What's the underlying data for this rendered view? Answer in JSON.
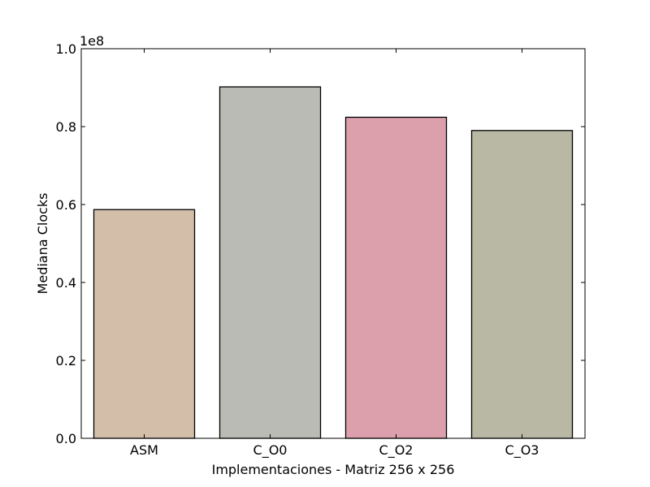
{
  "chart_data": {
    "type": "bar",
    "categories": [
      "ASM",
      "C_O0",
      "C_O2",
      "C_O3"
    ],
    "values": [
      0.587,
      0.902,
      0.824,
      0.79
    ],
    "colors": [
      "#d3bfa9",
      "#babbb4",
      "#dca0ac",
      "#b8b8a4"
    ],
    "scale_label": "1e8",
    "xlabel": "Implementaciones - Matriz 256 x 256",
    "ylabel": "Mediana Clocks",
    "ylim": [
      0,
      1.0
    ],
    "yticks": [
      "0.0",
      "0.2",
      "0.4",
      "0.6",
      "0.8",
      "1.0"
    ],
    "grid": false
  }
}
